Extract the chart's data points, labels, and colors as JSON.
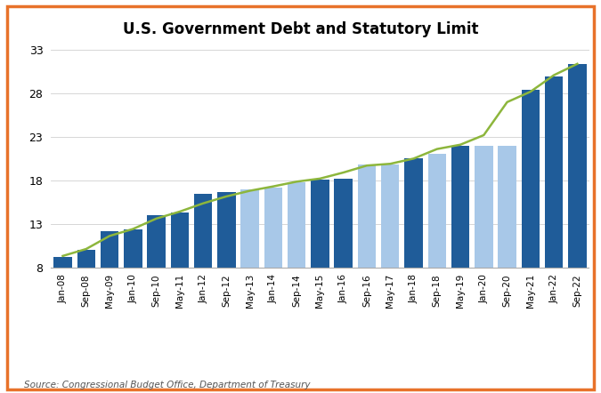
{
  "title": "U.S. Government Debt and Statutory Limit",
  "source_text": "Source: Congressional Budget Office, Department of Treasury",
  "bar_color_dark": "#1F5C99",
  "bar_color_light": "#A8C8E8",
  "line_color": "#8DB63C",
  "background_color": "#FFFFFF",
  "border_color": "#E8722A",
  "yticks": [
    8,
    13,
    18,
    23,
    28,
    33
  ],
  "ylim": [
    8,
    34
  ],
  "categories": [
    "Jan-08",
    "Sep-08",
    "May-09",
    "Jan-10",
    "Sep-10",
    "May-11",
    "Jan-12",
    "Sep-12",
    "May-13",
    "Jan-14",
    "Sep-14",
    "May-15",
    "Jan-16",
    "Sep-16",
    "May-17",
    "Jan-18",
    "Sep-18",
    "May-19",
    "Jan-20",
    "Sep-20",
    "May-21",
    "Jan-22",
    "Sep-22"
  ],
  "bar_heights": [
    9.15,
    10.0,
    12.1,
    12.4,
    14.0,
    14.3,
    16.4,
    16.7,
    17.0,
    17.2,
    17.8,
    18.1,
    18.15,
    19.8,
    19.85,
    20.5,
    21.0,
    22.0,
    22.0,
    22.0,
    28.4,
    30.0,
    31.4
  ],
  "bar_suspended": [
    false,
    false,
    false,
    false,
    false,
    false,
    false,
    false,
    true,
    true,
    true,
    false,
    false,
    true,
    true,
    false,
    true,
    false,
    true,
    true,
    false,
    false,
    false
  ],
  "line_values": [
    9.3,
    10.1,
    11.6,
    12.4,
    13.6,
    14.4,
    15.35,
    16.15,
    16.8,
    17.3,
    17.85,
    18.2,
    18.9,
    19.7,
    19.9,
    20.5,
    21.6,
    22.1,
    23.2,
    27.0,
    28.2,
    30.1,
    31.4
  ]
}
